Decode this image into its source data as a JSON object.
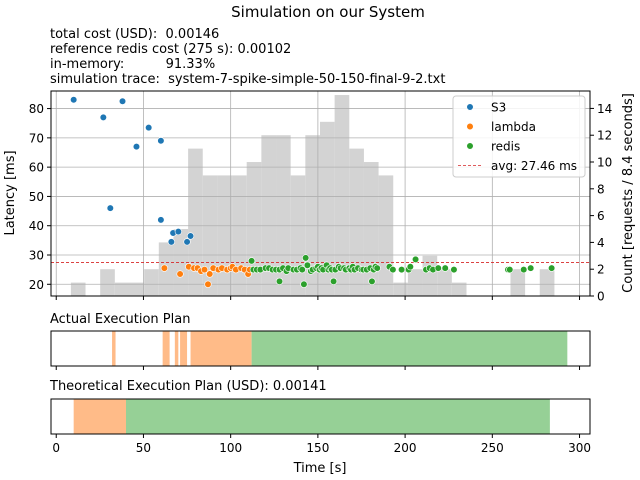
{
  "figure": {
    "title": "Simulation on our System",
    "info_lines": [
      "total cost (USD):  0.00146",
      "reference redis cost (275 s): 0.00102",
      "in-memory:          91.33%",
      "simulation trace:  system-7-spike-simple-50-150-final-9-2.txt"
    ],
    "colors": {
      "s3": "#1f77b4",
      "lambda": "#ff7f0e",
      "redis": "#2ca02c",
      "lambda_fill": "#ffbb88",
      "redis_fill": "#96d096",
      "hist": "#d3d3d3",
      "avg": "#d62728",
      "grid": "#b0b0b0"
    }
  },
  "chart_data": [
    {
      "type": "scatter",
      "title": "",
      "xlabel": "",
      "ylabel": "Latency [ms]",
      "y2label": "Count [requests / 8.4 seconds]",
      "xlim": [
        -3,
        306
      ],
      "ylim": [
        16,
        86
      ],
      "y2lim": [
        0,
        15.3
      ],
      "xticks": [
        0,
        50,
        100,
        150,
        200,
        250,
        300
      ],
      "yticks": [
        20,
        30,
        40,
        50,
        60,
        70,
        80
      ],
      "y2ticks": [
        0,
        2,
        4,
        6,
        8,
        10,
        12,
        14
      ],
      "grid": true,
      "legend_position": "upper-right",
      "avg_line": {
        "value": 27.46,
        "label": "avg: 27.46 ms"
      },
      "histogram": {
        "bin_width": 8.4,
        "bins": [
          {
            "x": 8.4,
            "count": 1
          },
          {
            "x": 16.8,
            "count": 0
          },
          {
            "x": 25.2,
            "count": 2
          },
          {
            "x": 33.6,
            "count": 1
          },
          {
            "x": 42,
            "count": 1
          },
          {
            "x": 50.4,
            "count": 2
          },
          {
            "x": 58.8,
            "count": 4
          },
          {
            "x": 67.2,
            "count": 5
          },
          {
            "x": 75.6,
            "count": 11
          },
          {
            "x": 84,
            "count": 9
          },
          {
            "x": 92.4,
            "count": 9
          },
          {
            "x": 100.8,
            "count": 9
          },
          {
            "x": 109.2,
            "count": 10
          },
          {
            "x": 117.6,
            "count": 12
          },
          {
            "x": 126,
            "count": 12
          },
          {
            "x": 134.4,
            "count": 9
          },
          {
            "x": 142.8,
            "count": 12
          },
          {
            "x": 151.2,
            "count": 13
          },
          {
            "x": 159.6,
            "count": 15
          },
          {
            "x": 168,
            "count": 11
          },
          {
            "x": 176.4,
            "count": 10
          },
          {
            "x": 184.8,
            "count": 9
          },
          {
            "x": 193.2,
            "count": 1
          },
          {
            "x": 201.6,
            "count": 2
          },
          {
            "x": 210,
            "count": 3
          },
          {
            "x": 218.4,
            "count": 2
          },
          {
            "x": 226.8,
            "count": 1
          },
          {
            "x": 235.2,
            "count": 0
          },
          {
            "x": 243.6,
            "count": 0
          },
          {
            "x": 252,
            "count": 0
          },
          {
            "x": 260.4,
            "count": 2
          },
          {
            "x": 268.8,
            "count": 0
          },
          {
            "x": 277.2,
            "count": 2
          }
        ]
      },
      "series": [
        {
          "name": "S3",
          "points": [
            [
              10,
              83
            ],
            [
              27,
              77
            ],
            [
              31,
              46
            ],
            [
              38,
              82.5
            ],
            [
              46,
              67
            ],
            [
              53,
              73.5
            ],
            [
              60,
              69
            ],
            [
              60,
              42
            ],
            [
              66,
              34.5
            ],
            [
              67,
              37.5
            ],
            [
              70,
              38
            ],
            [
              75,
              34.5
            ],
            [
              77,
              36.5
            ]
          ]
        },
        {
          "name": "lambda",
          "points": [
            [
              62,
              25.5
            ],
            [
              71,
              23.5
            ],
            [
              76,
              26
            ],
            [
              79,
              25.5
            ],
            [
              81,
              25.5
            ],
            [
              83,
              24.5
            ],
            [
              85,
              25
            ],
            [
              87,
              20
            ],
            [
              88,
              23.5
            ],
            [
              90,
              25.5
            ],
            [
              93,
              25
            ],
            [
              95,
              25.5
            ],
            [
              98,
              25
            ],
            [
              100,
              25.5
            ],
            [
              101,
              26
            ],
            [
              103,
              25
            ],
            [
              106,
              25.5
            ],
            [
              108,
              25
            ],
            [
              110,
              23.5
            ],
            [
              111,
              25
            ]
          ]
        },
        {
          "name": "redis",
          "points": [
            [
              112,
              28
            ],
            [
              113,
              25
            ],
            [
              115,
              25
            ],
            [
              117,
              25
            ],
            [
              120,
              25.5
            ],
            [
              122,
              25.5
            ],
            [
              124,
              25
            ],
            [
              126,
              25
            ],
            [
              128,
              25
            ],
            [
              128,
              21
            ],
            [
              130,
              25.5
            ],
            [
              132,
              24.5
            ],
            [
              133,
              25.5
            ],
            [
              136,
              25
            ],
            [
              138,
              25
            ],
            [
              140,
              25.5
            ],
            [
              141,
              25
            ],
            [
              142,
              20
            ],
            [
              143,
              29
            ],
            [
              144,
              26.5
            ],
            [
              146,
              24.5
            ],
            [
              147,
              25
            ],
            [
              149,
              25.5
            ],
            [
              150,
              26
            ],
            [
              151,
              25
            ],
            [
              152,
              25.5
            ],
            [
              153,
              25
            ],
            [
              155,
              26.5
            ],
            [
              156,
              25
            ],
            [
              157,
              25.5
            ],
            [
              158,
              25
            ],
            [
              159,
              21
            ],
            [
              160,
              25
            ],
            [
              162,
              26
            ],
            [
              163,
              25.5
            ],
            [
              165,
              25.5
            ],
            [
              166,
              25
            ],
            [
              168,
              25.5
            ],
            [
              169,
              25
            ],
            [
              170,
              26
            ],
            [
              171,
              25
            ],
            [
              173,
              25.5
            ],
            [
              175,
              25
            ],
            [
              176,
              25
            ],
            [
              178,
              25
            ],
            [
              180,
              25.5
            ],
            [
              181,
              21
            ],
            [
              182,
              25
            ],
            [
              183,
              26
            ],
            [
              184,
              25.5
            ],
            [
              191,
              26
            ],
            [
              193,
              25
            ],
            [
              198,
              25
            ],
            [
              202,
              25
            ],
            [
              203,
              26
            ],
            [
              206,
              28.5
            ],
            [
              212,
              25
            ],
            [
              214,
              25.5
            ],
            [
              216,
              25
            ],
            [
              219,
              25.5
            ],
            [
              223,
              25.5
            ],
            [
              228,
              25
            ],
            [
              259,
              25
            ],
            [
              260,
              25
            ],
            [
              268,
              25
            ],
            [
              272,
              25.5
            ],
            [
              284,
              25.5
            ]
          ]
        }
      ]
    },
    {
      "type": "timeline",
      "title": "Actual Execution Plan",
      "xlim": [
        -3,
        306
      ],
      "segments": [
        {
          "storage": "lambda",
          "start": 32,
          "end": 34
        },
        {
          "storage": "lambda",
          "start": 61,
          "end": 65
        },
        {
          "storage": "lambda",
          "start": 68,
          "end": 70
        },
        {
          "storage": "lambda",
          "start": 71,
          "end": 75
        },
        {
          "storage": "lambda",
          "start": 77,
          "end": 112
        },
        {
          "storage": "redis",
          "start": 112,
          "end": 293
        }
      ]
    },
    {
      "type": "timeline",
      "title": "Theoretical Execution Plan (USD): 0.00141",
      "xlim": [
        -3,
        306
      ],
      "xlabel": "Time [s]",
      "xticks": [
        0,
        50,
        100,
        150,
        200,
        250,
        300
      ],
      "segments": [
        {
          "storage": "lambda",
          "start": 10,
          "end": 40
        },
        {
          "storage": "redis",
          "start": 40,
          "end": 283
        }
      ]
    }
  ]
}
